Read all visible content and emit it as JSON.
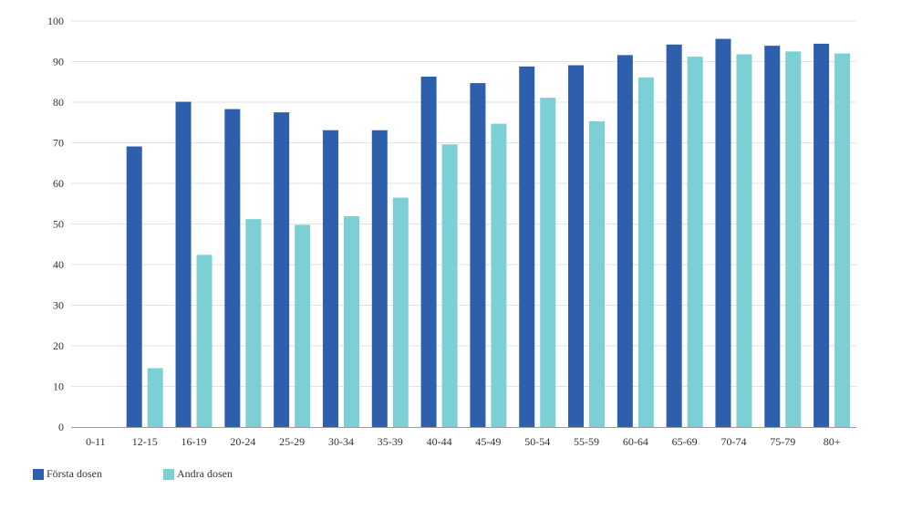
{
  "chart_data": {
    "type": "bar",
    "categories": [
      "0-11",
      "12-15",
      "16-19",
      "20-24",
      "25-29",
      "30-34",
      "35-39",
      "40-44",
      "45-49",
      "50-54",
      "55-59",
      "60-64",
      "65-69",
      "70-74",
      "75-79",
      "80+"
    ],
    "series": [
      {
        "name": "Första dosen",
        "color": "#2e5fad",
        "values": [
          0,
          69.1,
          80.1,
          78.3,
          77.5,
          73.1,
          73.1,
          86.3,
          84.7,
          88.8,
          89.1,
          91.6,
          94.2,
          95.6,
          93.9,
          94.4
        ]
      },
      {
        "name": "Andra dosen",
        "color": "#7dcfd6",
        "values": [
          0,
          14.5,
          42.4,
          51.2,
          49.8,
          51.9,
          56.5,
          69.6,
          74.7,
          81.1,
          75.3,
          86.1,
          91.2,
          91.8,
          92.5,
          92.0
        ]
      }
    ],
    "ylim": [
      0,
      100
    ],
    "yticks": [
      0,
      10,
      20,
      30,
      40,
      50,
      60,
      70,
      80,
      90,
      100
    ],
    "grid": true,
    "legend_position": "bottom-left",
    "title": "",
    "xlabel": "",
    "ylabel": ""
  }
}
